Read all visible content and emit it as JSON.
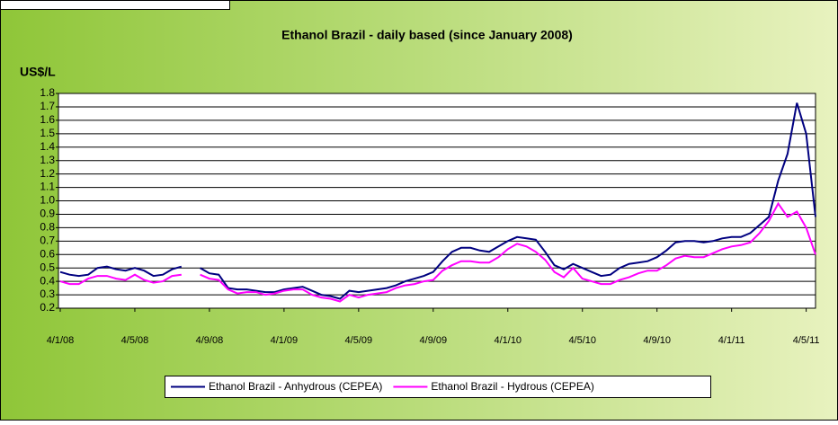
{
  "chart_data": {
    "type": "line",
    "title": "Ethanol Brazil - daily based (since January 2008)",
    "y_label": "US$/L",
    "categories": [
      "4/1/08",
      null,
      null,
      null,
      null,
      null,
      null,
      null,
      "4/5/08",
      null,
      null,
      null,
      null,
      null,
      null,
      null,
      "4/9/08",
      null,
      null,
      null,
      null,
      null,
      null,
      null,
      "4/1/09",
      null,
      null,
      null,
      null,
      null,
      null,
      null,
      "4/5/09",
      null,
      null,
      null,
      null,
      null,
      null,
      null,
      "4/9/09",
      null,
      null,
      null,
      null,
      null,
      null,
      null,
      "4/1/10",
      null,
      null,
      null,
      null,
      null,
      null,
      null,
      "4/5/10",
      null,
      null,
      null,
      null,
      null,
      null,
      null,
      "4/9/10",
      null,
      null,
      null,
      null,
      null,
      null,
      null,
      "4/1/11",
      null,
      null,
      null,
      null,
      null,
      null,
      null,
      "4/5/11",
      null
    ],
    "series": [
      {
        "name": "Ethanol Brazil - Anhydrous (CEPEA)",
        "color": "#000080",
        "values": [
          0.47,
          0.45,
          0.44,
          0.45,
          0.5,
          0.51,
          0.49,
          0.48,
          0.5,
          0.48,
          0.44,
          0.45,
          0.49,
          0.51,
          null,
          0.5,
          0.46,
          0.45,
          0.35,
          0.34,
          0.34,
          0.33,
          0.32,
          0.32,
          0.34,
          0.35,
          0.36,
          0.33,
          0.3,
          0.29,
          0.27,
          0.33,
          0.32,
          0.33,
          0.34,
          0.35,
          0.37,
          0.4,
          0.42,
          0.44,
          0.47,
          0.55,
          0.62,
          0.65,
          0.65,
          0.63,
          0.62,
          0.66,
          0.7,
          0.73,
          0.72,
          0.71,
          0.62,
          0.52,
          0.49,
          0.53,
          0.5,
          0.47,
          0.44,
          0.45,
          0.5,
          0.53,
          0.54,
          0.55,
          0.58,
          0.63,
          0.69,
          0.7,
          0.7,
          0.69,
          0.7,
          0.72,
          0.73,
          0.73,
          0.76,
          0.82,
          0.88,
          1.15,
          1.35,
          1.73,
          1.5,
          0.88
        ]
      },
      {
        "name": "Ethanol Brazil - Hydrous (CEPEA)",
        "color": "#ff00ff",
        "values": [
          0.4,
          0.38,
          0.38,
          0.42,
          0.44,
          0.44,
          0.42,
          0.41,
          0.45,
          0.41,
          0.39,
          0.4,
          0.44,
          0.45,
          null,
          0.45,
          0.42,
          0.41,
          0.34,
          0.31,
          0.32,
          0.32,
          0.3,
          0.31,
          0.33,
          0.34,
          0.34,
          0.3,
          0.28,
          0.27,
          0.25,
          0.3,
          0.28,
          0.3,
          0.31,
          0.32,
          0.35,
          0.37,
          0.38,
          0.4,
          0.41,
          0.48,
          0.52,
          0.55,
          0.55,
          0.54,
          0.54,
          0.58,
          0.64,
          0.68,
          0.66,
          0.62,
          0.56,
          0.47,
          0.43,
          0.5,
          0.42,
          0.4,
          0.38,
          0.38,
          0.41,
          0.43,
          0.46,
          0.48,
          0.48,
          0.52,
          0.57,
          0.59,
          0.58,
          0.58,
          0.61,
          0.64,
          0.66,
          0.67,
          0.69,
          0.76,
          0.85,
          0.98,
          0.88,
          0.92,
          0.8,
          0.6
        ]
      }
    ],
    "ylim": [
      0.2,
      1.8
    ],
    "yticks": [
      0.2,
      0.3,
      0.4,
      0.5,
      0.6,
      0.7,
      0.8,
      0.9,
      {
        "value": 1,
        "label": "1.0"
      },
      1.1,
      1.2,
      1.3,
      1.4,
      1.5,
      1.6,
      1.7,
      1.8
    ],
    "grid": true,
    "legend": "bottom"
  }
}
